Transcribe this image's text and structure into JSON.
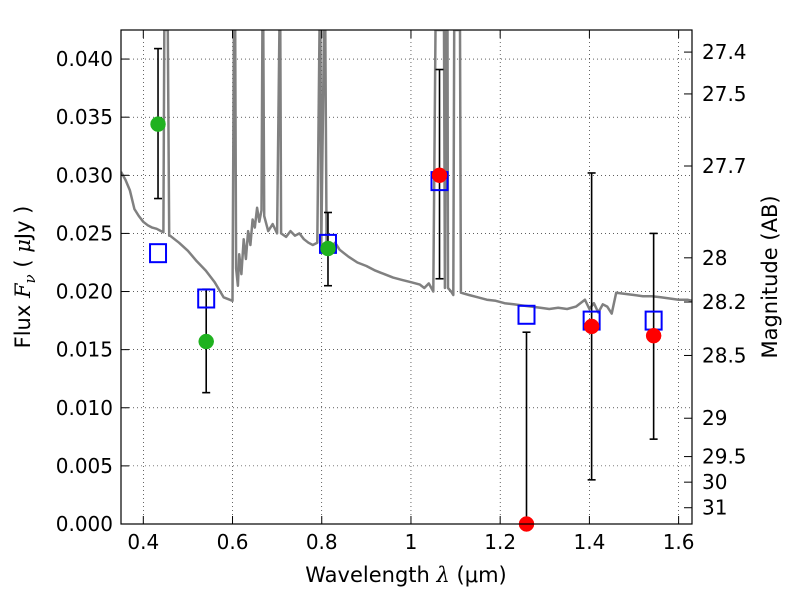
{
  "chart_data": {
    "type": "scatter",
    "xlabel": {
      "text": "Wavelength",
      "symbol": "λ",
      "unit": "(μm)"
    },
    "ylabel": {
      "text": "Flux",
      "symbol": "F",
      "subscript": "ν",
      "unit_open": "(",
      "unit_mu": "μ",
      "unit_rest": "Jy )"
    },
    "y2label": "Magnitude (AB)",
    "xlim": [
      0.35,
      1.63
    ],
    "ylim": [
      0.0,
      0.0425
    ],
    "grid": true,
    "x_ticks": [
      0.4,
      0.6,
      0.8,
      1.0,
      1.2,
      1.4,
      1.6
    ],
    "x_tick_labels": [
      "0.4",
      "0.6",
      "0.8",
      "1",
      "1.2",
      "1.4",
      "1.6"
    ],
    "y_ticks": [
      0.0,
      0.005,
      0.01,
      0.015,
      0.02,
      0.025,
      0.03,
      0.035,
      0.04
    ],
    "y_tick_labels": [
      "0.000",
      "0.005",
      "0.010",
      "0.015",
      "0.020",
      "0.025",
      "0.030",
      "0.035",
      "0.040"
    ],
    "mag_ticks": [
      {
        "label": "27.4",
        "flux": 0.0406
      },
      {
        "label": "27.5",
        "flux": 0.037
      },
      {
        "label": "27.7",
        "flux": 0.0308
      },
      {
        "label": "28",
        "flux": 0.0229
      },
      {
        "label": "28.2",
        "flux": 0.0191
      },
      {
        "label": "28.5",
        "flux": 0.0145
      },
      {
        "label": "29",
        "flux": 0.0091
      },
      {
        "label": "29.5",
        "flux": 0.0058
      },
      {
        "label": "30",
        "flux": 0.0036
      },
      {
        "label": "31",
        "flux": 0.0014
      }
    ],
    "model_spectrum": {
      "color": "#808080",
      "points": [
        [
          0.35,
          0.0303
        ],
        [
          0.36,
          0.0296
        ],
        [
          0.37,
          0.0287
        ],
        [
          0.38,
          0.0271
        ],
        [
          0.39,
          0.0265
        ],
        [
          0.4,
          0.026
        ],
        [
          0.41,
          0.0257
        ],
        [
          0.42,
          0.0255
        ],
        [
          0.43,
          0.0254
        ],
        [
          0.44,
          0.0252
        ],
        [
          0.445,
          0.0251
        ],
        [
          0.447,
          0.0425
        ],
        [
          0.45,
          0.0425
        ],
        [
          0.455,
          0.0425
        ],
        [
          0.458,
          0.0248
        ],
        [
          0.46,
          0.0248
        ],
        [
          0.47,
          0.0245
        ],
        [
          0.48,
          0.0242
        ],
        [
          0.5,
          0.0235
        ],
        [
          0.52,
          0.0226
        ],
        [
          0.54,
          0.0218
        ],
        [
          0.56,
          0.0208
        ],
        [
          0.58,
          0.0195
        ],
        [
          0.6,
          0.0192
        ],
        [
          0.603,
          0.0425
        ],
        [
          0.606,
          0.0425
        ],
        [
          0.608,
          0.022
        ],
        [
          0.612,
          0.0205
        ],
        [
          0.615,
          0.0232
        ],
        [
          0.62,
          0.0215
        ],
        [
          0.625,
          0.0245
        ],
        [
          0.63,
          0.0228
        ],
        [
          0.635,
          0.0252
        ],
        [
          0.64,
          0.024
        ],
        [
          0.645,
          0.0262
        ],
        [
          0.65,
          0.0255
        ],
        [
          0.655,
          0.0272
        ],
        [
          0.66,
          0.026
        ],
        [
          0.665,
          0.027
        ],
        [
          0.667,
          0.0425
        ],
        [
          0.669,
          0.0425
        ],
        [
          0.671,
          0.0265
        ],
        [
          0.68,
          0.0252
        ],
        [
          0.69,
          0.0258
        ],
        [
          0.7,
          0.025
        ],
        [
          0.705,
          0.0425
        ],
        [
          0.707,
          0.0425
        ],
        [
          0.709,
          0.025
        ],
        [
          0.72,
          0.0247
        ],
        [
          0.73,
          0.0252
        ],
        [
          0.74,
          0.0248
        ],
        [
          0.75,
          0.025
        ],
        [
          0.76,
          0.0245
        ],
        [
          0.77,
          0.0242
        ],
        [
          0.78,
          0.024
        ],
        [
          0.79,
          0.0242
        ],
        [
          0.795,
          0.0425
        ],
        [
          0.797,
          0.0425
        ],
        [
          0.799,
          0.024
        ],
        [
          0.805,
          0.0425
        ],
        [
          0.808,
          0.0425
        ],
        [
          0.811,
          0.024
        ],
        [
          0.82,
          0.0238
        ],
        [
          0.83,
          0.0242
        ],
        [
          0.84,
          0.0236
        ],
        [
          0.85,
          0.0233
        ],
        [
          0.86,
          0.023
        ],
        [
          0.88,
          0.0225
        ],
        [
          0.9,
          0.0222
        ],
        [
          0.92,
          0.0218
        ],
        [
          0.94,
          0.0215
        ],
        [
          0.96,
          0.0212
        ],
        [
          0.98,
          0.021
        ],
        [
          1.0,
          0.0208
        ],
        [
          1.02,
          0.0206
        ],
        [
          1.03,
          0.0203
        ],
        [
          1.04,
          0.0207
        ],
        [
          1.05,
          0.02
        ],
        [
          1.055,
          0.0425
        ],
        [
          1.06,
          0.0425
        ],
        [
          1.065,
          0.0425
        ],
        [
          1.07,
          0.0425
        ],
        [
          1.074,
          0.0425
        ],
        [
          1.076,
          0.0203
        ],
        [
          1.078,
          0.0425
        ],
        [
          1.082,
          0.0425
        ],
        [
          1.083,
          0.0203
        ],
        [
          1.09,
          0.02
        ],
        [
          1.095,
          0.0197
        ],
        [
          1.097,
          0.0425
        ],
        [
          1.1,
          0.0425
        ],
        [
          1.105,
          0.0425
        ],
        [
          1.11,
          0.0425
        ],
        [
          1.112,
          0.0199
        ],
        [
          1.13,
          0.0197
        ],
        [
          1.15,
          0.0195
        ],
        [
          1.17,
          0.0193
        ],
        [
          1.19,
          0.0192
        ],
        [
          1.21,
          0.019
        ],
        [
          1.23,
          0.0189
        ],
        [
          1.25,
          0.0188
        ],
        [
          1.27,
          0.0187
        ],
        [
          1.29,
          0.0186
        ],
        [
          1.31,
          0.0185
        ],
        [
          1.33,
          0.0186
        ],
        [
          1.35,
          0.0185
        ],
        [
          1.37,
          0.0187
        ],
        [
          1.39,
          0.0193
        ],
        [
          1.4,
          0.0185
        ],
        [
          1.41,
          0.019
        ],
        [
          1.42,
          0.0182
        ],
        [
          1.43,
          0.0189
        ],
        [
          1.44,
          0.0187
        ],
        [
          1.45,
          0.0181
        ],
        [
          1.46,
          0.0199
        ],
        [
          1.48,
          0.0198
        ],
        [
          1.5,
          0.0197
        ],
        [
          1.52,
          0.0196
        ],
        [
          1.54,
          0.0196
        ],
        [
          1.56,
          0.0195
        ],
        [
          1.58,
          0.0194
        ],
        [
          1.6,
          0.0193
        ],
        [
          1.62,
          0.0193
        ],
        [
          1.63,
          0.0192
        ]
      ]
    },
    "series": [
      {
        "marker": "circle",
        "color": "#1fb21f",
        "points": [
          {
            "x": 0.433,
            "y": 0.0344,
            "err_low": 0.028,
            "err_high": 0.0409
          },
          {
            "x": 0.541,
            "y": 0.0157,
            "err_low": 0.0113,
            "err_high": 0.0202
          },
          {
            "x": 0.814,
            "y": 0.0237,
            "err_low": 0.0205,
            "err_high": 0.0268
          }
        ]
      },
      {
        "marker": "circle",
        "color": "#ff0000",
        "points": [
          {
            "x": 1.064,
            "y": 0.03,
            "err_low": 0.0211,
            "err_high": 0.0391
          },
          {
            "x": 1.259,
            "y": 0.0,
            "err_low": 0.0,
            "err_high": 0.0165
          },
          {
            "x": 1.405,
            "y": 0.017,
            "err_low": 0.0038,
            "err_high": 0.0302
          },
          {
            "x": 1.544,
            "y": 0.0162,
            "err_low": 0.0073,
            "err_high": 0.025
          }
        ]
      },
      {
        "marker": "square-open",
        "color": "#0000ff",
        "points": [
          {
            "x": 0.433,
            "y": 0.0233
          },
          {
            "x": 0.541,
            "y": 0.0194
          },
          {
            "x": 0.814,
            "y": 0.0241
          },
          {
            "x": 1.064,
            "y": 0.0295
          },
          {
            "x": 1.259,
            "y": 0.018
          },
          {
            "x": 1.405,
            "y": 0.0175
          },
          {
            "x": 1.544,
            "y": 0.0175
          }
        ]
      }
    ]
  }
}
